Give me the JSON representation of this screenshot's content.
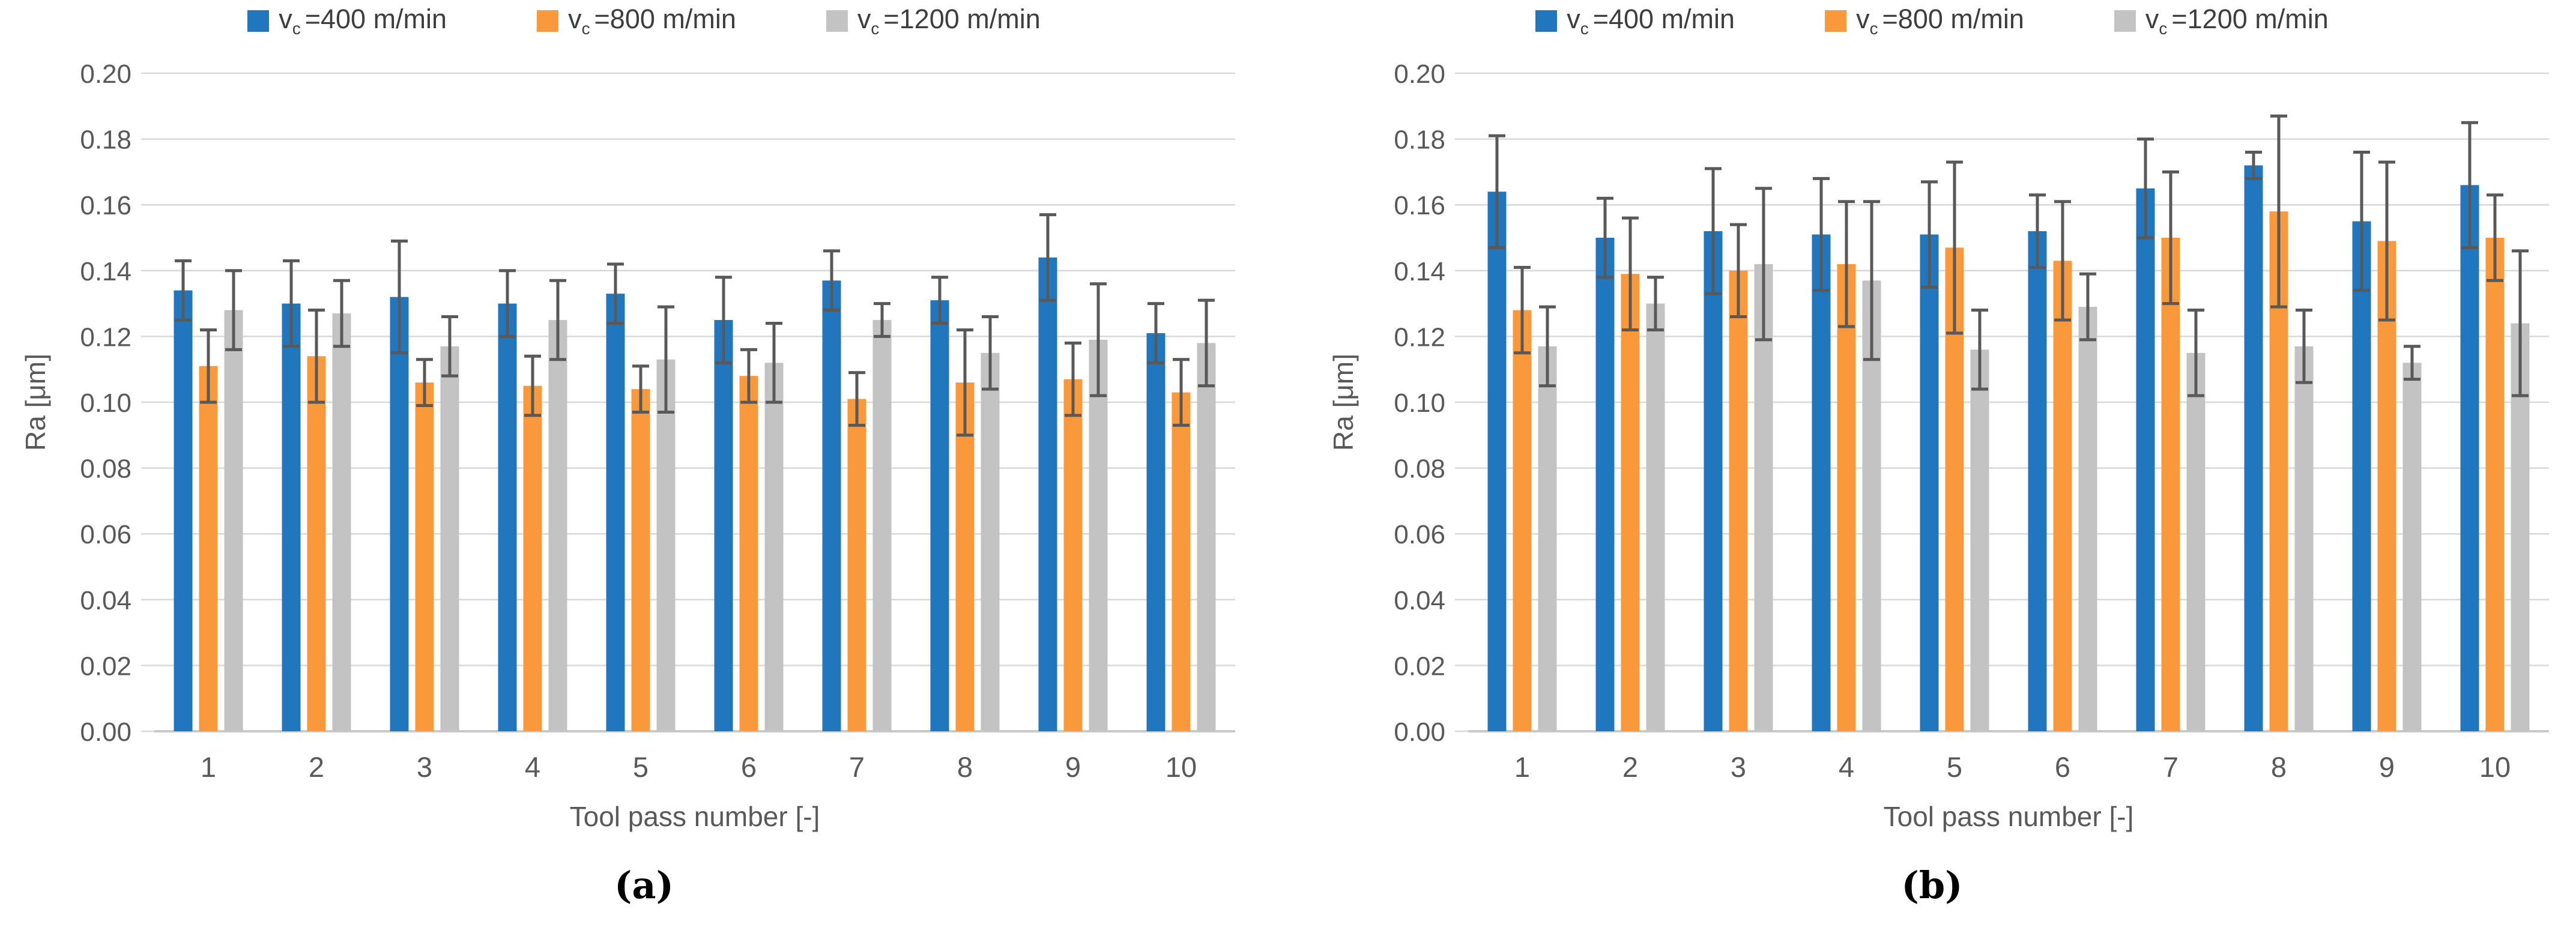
{
  "figure": {
    "background": "#ffffff",
    "colors": {
      "blue": "#2177BE",
      "orange": "#F9993B",
      "gray": "#C3C3C3",
      "error_bar": "#595959",
      "gridline": "#D9D9D9",
      "axis_line": "#C9C9C9",
      "tick_text": "#595959",
      "legend_text": "#3E3E3E",
      "caption_text": "#000000"
    }
  },
  "chart_data": [
    {
      "type": "bar",
      "panel": "a",
      "caption": "(a)",
      "title": "",
      "xlabel": "Tool pass number [-]",
      "ylabel": "Ra [μm]",
      "ylim": [
        0,
        0.2
      ],
      "ytick_step": 0.02,
      "ytick_labels": [
        "0.00",
        "0.02",
        "0.04",
        "0.06",
        "0.08",
        "0.10",
        "0.12",
        "0.14",
        "0.16",
        "0.18",
        "0.20"
      ],
      "categories": [
        "1",
        "2",
        "3",
        "4",
        "5",
        "6",
        "7",
        "8",
        "9",
        "10"
      ],
      "grid": true,
      "legend_position": "top",
      "error_bars": true,
      "series": [
        {
          "name": "vc=400 m/min",
          "label_pre": "v",
          "label_sub": "c",
          "label_post": "=400 m/min",
          "color_key": "blue",
          "values": [
            0.134,
            0.13,
            0.132,
            0.13,
            0.133,
            0.125,
            0.137,
            0.131,
            0.144,
            0.121
          ],
          "errors": [
            0.009,
            0.013,
            0.017,
            0.01,
            0.009,
            0.013,
            0.009,
            0.007,
            0.013,
            0.009
          ]
        },
        {
          "name": "vc=800 m/min",
          "label_pre": "v",
          "label_sub": "c",
          "label_post": "=800 m/min",
          "color_key": "orange",
          "values": [
            0.111,
            0.114,
            0.106,
            0.105,
            0.104,
            0.108,
            0.101,
            0.106,
            0.107,
            0.103
          ],
          "errors": [
            0.011,
            0.014,
            0.007,
            0.009,
            0.007,
            0.008,
            0.008,
            0.016,
            0.011,
            0.01
          ]
        },
        {
          "name": "vc=1200 m/min",
          "label_pre": "v",
          "label_sub": "c",
          "label_post": "=1200 m/min",
          "color_key": "gray",
          "values": [
            0.128,
            0.127,
            0.117,
            0.125,
            0.113,
            0.112,
            0.125,
            0.115,
            0.119,
            0.118
          ],
          "errors": [
            0.012,
            0.01,
            0.009,
            0.012,
            0.016,
            0.012,
            0.005,
            0.011,
            0.017,
            0.013
          ]
        }
      ]
    },
    {
      "type": "bar",
      "panel": "b",
      "caption": "(b)",
      "title": "",
      "xlabel": "Tool pass number [-]",
      "ylabel": "Ra [μm]",
      "ylim": [
        0,
        0.2
      ],
      "ytick_step": 0.02,
      "ytick_labels": [
        "0.00",
        "0.02",
        "0.04",
        "0.06",
        "0.08",
        "0.10",
        "0.12",
        "0.14",
        "0.16",
        "0.18",
        "0.20"
      ],
      "categories": [
        "1",
        "2",
        "3",
        "4",
        "5",
        "6",
        "7",
        "8",
        "9",
        "10"
      ],
      "grid": true,
      "legend_position": "top",
      "error_bars": true,
      "series": [
        {
          "name": "vc=400 m/min",
          "label_pre": "v",
          "label_sub": "c",
          "label_post": "=400 m/min",
          "color_key": "blue",
          "values": [
            0.164,
            0.15,
            0.152,
            0.151,
            0.151,
            0.152,
            0.165,
            0.172,
            0.155,
            0.166
          ],
          "errors": [
            0.017,
            0.012,
            0.019,
            0.017,
            0.016,
            0.011,
            0.015,
            0.004,
            0.021,
            0.019
          ]
        },
        {
          "name": "vc=800 m/min",
          "label_pre": "v",
          "label_sub": "c",
          "label_post": "=800 m/min",
          "color_key": "orange",
          "values": [
            0.128,
            0.139,
            0.14,
            0.142,
            0.147,
            0.143,
            0.15,
            0.158,
            0.149,
            0.15
          ],
          "errors": [
            0.013,
            0.017,
            0.014,
            0.019,
            0.026,
            0.018,
            0.02,
            0.029,
            0.024,
            0.013
          ]
        },
        {
          "name": "vc=1200 m/min",
          "label_pre": "v",
          "label_sub": "c",
          "label_post": "=1200 m/min",
          "color_key": "gray",
          "values": [
            0.117,
            0.13,
            0.142,
            0.137,
            0.116,
            0.129,
            0.115,
            0.117,
            0.112,
            0.124
          ],
          "errors": [
            0.012,
            0.008,
            0.023,
            0.024,
            0.012,
            0.01,
            0.013,
            0.011,
            0.005,
            0.022
          ]
        }
      ]
    }
  ]
}
